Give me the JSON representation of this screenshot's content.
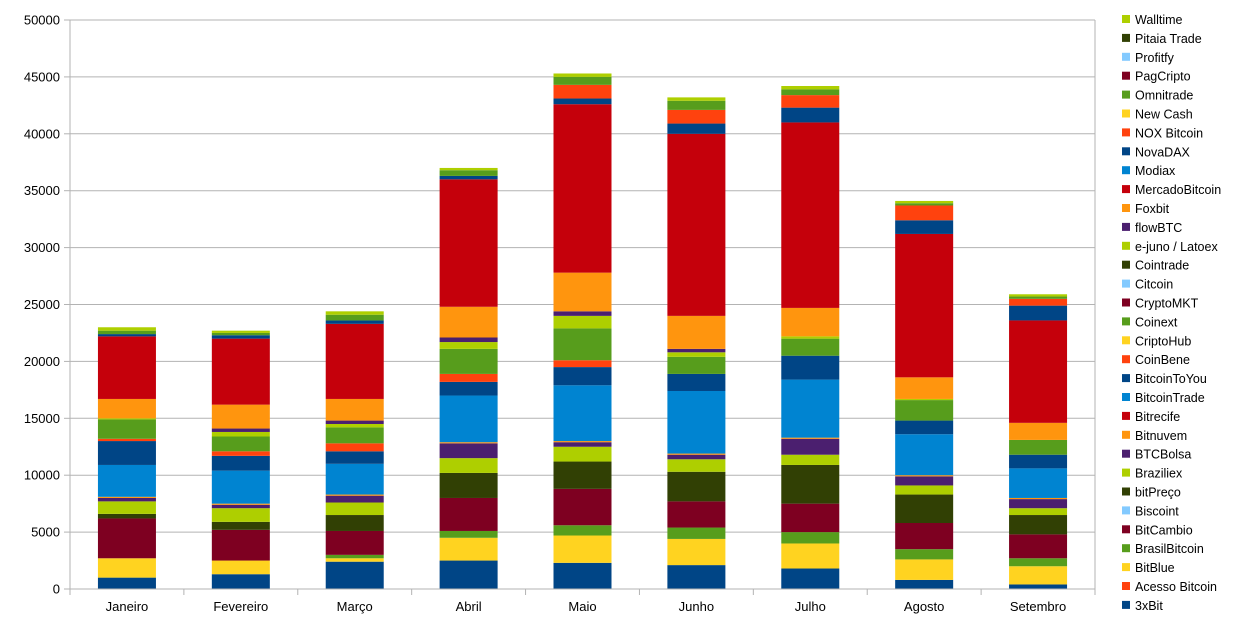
{
  "chart_data": {
    "type": "bar",
    "stacked": true,
    "title": "",
    "xlabel": "",
    "ylabel": "",
    "ylim": [
      0,
      50000
    ],
    "yticks": [
      0,
      5000,
      10000,
      15000,
      20000,
      25000,
      30000,
      35000,
      40000,
      45000,
      50000
    ],
    "grid": "horizontal",
    "legend_position": "right",
    "categories": [
      "Janeiro",
      "Fevereiro",
      "Março",
      "Abril",
      "Maio",
      "Junho",
      "Julho",
      "Agosto",
      "Setembro"
    ],
    "series": [
      {
        "name": "3xBit",
        "color": "#004586",
        "values": [
          1000,
          1300,
          2400,
          2500,
          2300,
          2100,
          1800,
          800,
          400
        ]
      },
      {
        "name": "Acesso Bitcoin",
        "color": "#ff420e",
        "values": [
          0,
          0,
          0,
          0,
          0,
          0,
          0,
          0,
          0
        ]
      },
      {
        "name": "BitBlue",
        "color": "#ffd320",
        "values": [
          1700,
          1200,
          300,
          2000,
          2400,
          2300,
          2200,
          1800,
          1600
        ]
      },
      {
        "name": "BrasilBitcoin",
        "color": "#579d1c",
        "values": [
          0,
          0,
          300,
          600,
          900,
          1000,
          1000,
          900,
          700
        ]
      },
      {
        "name": "BitCambio",
        "color": "#7e0021",
        "values": [
          3500,
          2700,
          2100,
          2900,
          3200,
          2300,
          2500,
          2300,
          2100
        ]
      },
      {
        "name": "Biscoint",
        "color": "#83caff",
        "values": [
          0,
          0,
          0,
          0,
          0,
          0,
          0,
          0,
          0
        ]
      },
      {
        "name": "bitPreço",
        "color": "#314004",
        "values": [
          400,
          700,
          1400,
          2200,
          2400,
          2600,
          3400,
          2500,
          1700
        ]
      },
      {
        "name": "Braziliex",
        "color": "#aecf00",
        "values": [
          1100,
          1200,
          1100,
          1300,
          1300,
          1100,
          900,
          800,
          600
        ]
      },
      {
        "name": "BTCBolsa",
        "color": "#4b1f6f",
        "values": [
          300,
          300,
          600,
          1300,
          400,
          400,
          1400,
          800,
          800
        ]
      },
      {
        "name": "Bitnuvem",
        "color": "#ff950e",
        "values": [
          100,
          100,
          100,
          100,
          100,
          100,
          100,
          100,
          100
        ]
      },
      {
        "name": "Bitrecife",
        "color": "#c5000b",
        "values": [
          0,
          0,
          0,
          0,
          0,
          0,
          0,
          0,
          0
        ]
      },
      {
        "name": "BitcoinTrade",
        "color": "#0084d1",
        "values": [
          2800,
          2900,
          2700,
          4100,
          4900,
          5500,
          5100,
          3600,
          2600
        ]
      },
      {
        "name": "BitcoinToYou",
        "color": "#004586",
        "values": [
          2100,
          1300,
          1100,
          1200,
          1600,
          1500,
          2100,
          1200,
          1200
        ]
      },
      {
        "name": "CoinBene",
        "color": "#ff420e",
        "values": [
          200,
          400,
          700,
          700,
          600,
          0,
          0,
          0,
          0
        ]
      },
      {
        "name": "CriptoHub",
        "color": "#ffd320",
        "values": [
          0,
          0,
          0,
          0,
          0,
          0,
          0,
          0,
          0
        ]
      },
      {
        "name": "Coinext",
        "color": "#579d1c",
        "values": [
          1700,
          1300,
          1400,
          2200,
          2800,
          1500,
          1500,
          1800,
          1300
        ]
      },
      {
        "name": "CryptoMKT",
        "color": "#7e0021",
        "values": [
          0,
          0,
          0,
          0,
          0,
          0,
          0,
          0,
          0
        ]
      },
      {
        "name": "Citcoin",
        "color": "#83caff",
        "values": [
          0,
          0,
          0,
          0,
          0,
          0,
          0,
          0,
          0
        ]
      },
      {
        "name": "Cointrade",
        "color": "#314004",
        "values": [
          0,
          0,
          0,
          0,
          0,
          0,
          0,
          0,
          0
        ]
      },
      {
        "name": "e-juno / Latoex",
        "color": "#aecf00",
        "values": [
          100,
          400,
          300,
          600,
          1100,
          400,
          200,
          100,
          0
        ]
      },
      {
        "name": "flowBTC",
        "color": "#4b1f6f",
        "values": [
          0,
          300,
          300,
          400,
          400,
          300,
          0,
          0,
          0
        ]
      },
      {
        "name": "Foxbit",
        "color": "#ff950e",
        "values": [
          1700,
          2100,
          1900,
          2700,
          3400,
          2900,
          2500,
          1900,
          1500
        ]
      },
      {
        "name": "MercadoBitcoin",
        "color": "#c5000b",
        "values": [
          5500,
          5800,
          6600,
          11200,
          14800,
          16000,
          16300,
          12600,
          9000
        ]
      },
      {
        "name": "Modiax",
        "color": "#0084d1",
        "values": [
          0,
          0,
          0,
          0,
          0,
          0,
          0,
          0,
          0
        ]
      },
      {
        "name": "NovaDAX",
        "color": "#004586",
        "values": [
          200,
          300,
          300,
          300,
          500,
          900,
          1300,
          1200,
          1300
        ]
      },
      {
        "name": "NOX Bitcoin",
        "color": "#ff420e",
        "values": [
          0,
          0,
          0,
          0,
          1200,
          1200,
          1100,
          1300,
          600
        ]
      },
      {
        "name": "New Cash",
        "color": "#ffd320",
        "values": [
          0,
          0,
          0,
          0,
          0,
          0,
          0,
          0,
          0
        ]
      },
      {
        "name": "Omnitrade",
        "color": "#579d1c",
        "values": [
          300,
          200,
          500,
          500,
          700,
          800,
          500,
          200,
          200
        ]
      },
      {
        "name": "PagCripto",
        "color": "#7e0021",
        "values": [
          0,
          0,
          0,
          0,
          0,
          0,
          0,
          0,
          0
        ]
      },
      {
        "name": "Profitfy",
        "color": "#83caff",
        "values": [
          0,
          0,
          0,
          0,
          0,
          0,
          0,
          0,
          0
        ]
      },
      {
        "name": "Pitaia Trade",
        "color": "#314004",
        "values": [
          0,
          0,
          0,
          0,
          0,
          0,
          0,
          0,
          0
        ]
      },
      {
        "name": "Walltime",
        "color": "#aecf00",
        "values": [
          300,
          200,
          300,
          200,
          300,
          300,
          300,
          200,
          200
        ]
      }
    ]
  }
}
